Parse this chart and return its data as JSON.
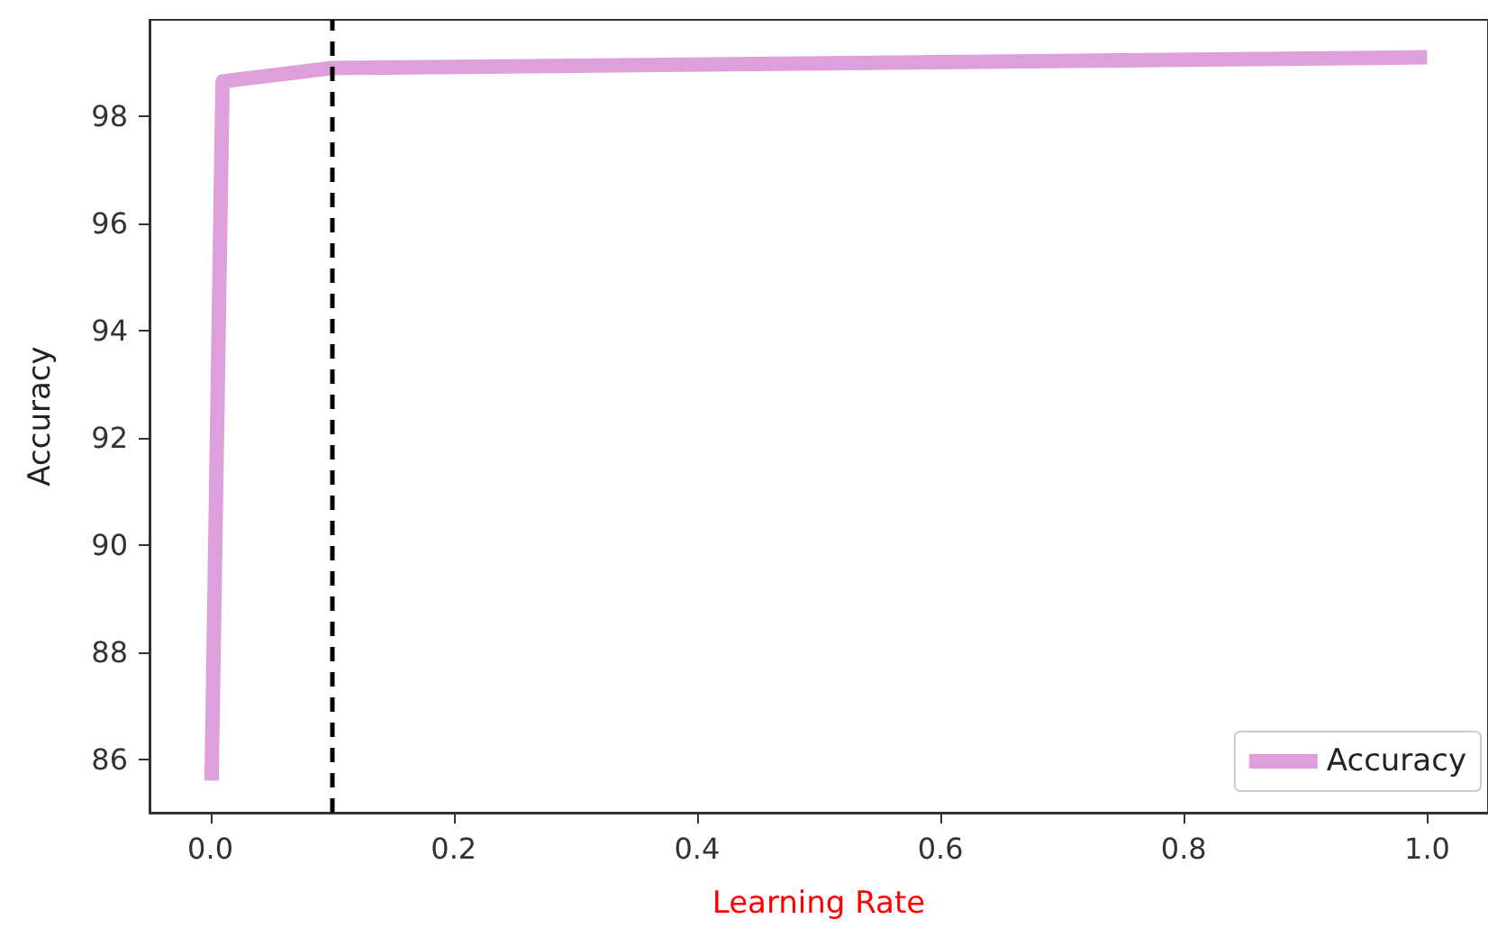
{
  "chart_data": {
    "type": "line",
    "xlabel": "Learning Rate",
    "ylabel": "Accuracy",
    "x": [
      0.001,
      0.01,
      0.1,
      1.0
    ],
    "series": [
      {
        "name": "Accuracy",
        "color": "#dda0dd",
        "values": [
          85.6,
          98.65,
          98.9,
          99.1
        ]
      }
    ],
    "xlim": [
      -0.05,
      1.05
    ],
    "xticks": [
      {
        "value": 0,
        "label": "0.0"
      },
      0.2,
      0.4,
      0.6,
      0.8,
      {
        "value": 1,
        "label": "1.0"
      }
    ],
    "ylim": [
      85,
      99.8
    ],
    "yticks": [
      86,
      88,
      90,
      92,
      94,
      96,
      98
    ],
    "ref_lines": [
      {
        "axis": "x",
        "value": 0.1,
        "color": "#000000",
        "line_style": "dashed"
      }
    ],
    "grid": false,
    "legend": "bottom right",
    "marker": "none",
    "line_style": "solid"
  }
}
